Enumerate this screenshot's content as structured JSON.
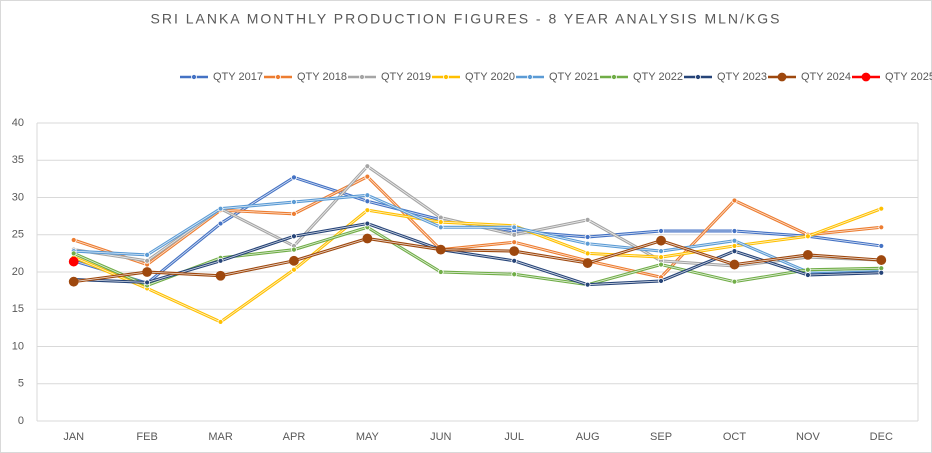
{
  "chart_data": {
    "type": "line",
    "title": "SRI LANKA MONTHLY PRODUCTION FIGURES - 8 YEAR ANALYSIS MLN/KGS",
    "categories": [
      "JAN",
      "FEB",
      "MAR",
      "APR",
      "MAY",
      "JUN",
      "JUL",
      "AUG",
      "SEP",
      "OCT",
      "NOV",
      "DEC"
    ],
    "ylim": [
      0,
      40
    ],
    "yticks": [
      0,
      5,
      10,
      15,
      20,
      25,
      30,
      35,
      40
    ],
    "grid": true,
    "legend": "top",
    "series": [
      {
        "name": "QTY 2017",
        "color": "#4472c4",
        "values": [
          21.5,
          18.5,
          26.5,
          32.7,
          29.5,
          27,
          25.5,
          24.7,
          25.5,
          25.5,
          24.8,
          23.5
        ]
      },
      {
        "name": "QTY 2018",
        "color": "#ed7d31",
        "values": [
          24.3,
          21,
          28.3,
          27.8,
          32.8,
          23,
          24,
          21.5,
          19.3,
          29.6,
          25,
          26
        ]
      },
      {
        "name": "QTY 2019",
        "color": "#a5a5a5",
        "values": [
          23,
          21.5,
          28.5,
          23.5,
          34.2,
          27.3,
          25,
          27,
          21.5,
          20.8,
          22,
          21.6
        ]
      },
      {
        "name": "QTY 2020",
        "color": "#ffc000",
        "values": [
          22,
          17.8,
          13.3,
          20.3,
          28.3,
          26.7,
          26.2,
          22.5,
          22,
          23.5,
          24.8,
          28.5
        ]
      },
      {
        "name": "QTY 2021",
        "color": "#5b9bd5",
        "values": [
          22.8,
          22.3,
          28.5,
          29.4,
          30.3,
          26,
          26,
          23.8,
          22.8,
          24.2,
          20,
          20.3
        ]
      },
      {
        "name": "QTY 2022",
        "color": "#70ad47",
        "values": [
          22.5,
          18.2,
          21.9,
          23,
          26,
          20,
          19.7,
          18.3,
          21,
          18.7,
          20.3,
          20.5
        ]
      },
      {
        "name": "QTY 2023",
        "color": "#264478",
        "values": [
          19,
          18.6,
          21.5,
          24.8,
          26.5,
          23,
          21.5,
          18.3,
          18.8,
          22.8,
          19.6,
          19.9
        ]
      },
      {
        "name": "QTY 2024",
        "color": "#9e480e",
        "values": [
          18.7,
          20,
          19.5,
          21.5,
          24.5,
          23,
          22.8,
          21.2,
          24.2,
          21,
          22.3,
          21.6
        ]
      },
      {
        "name": "QTY 2025",
        "color": "#ff0000",
        "values": [
          21.4,
          null,
          null,
          null,
          null,
          null,
          null,
          null,
          null,
          null,
          null,
          null
        ]
      }
    ]
  }
}
